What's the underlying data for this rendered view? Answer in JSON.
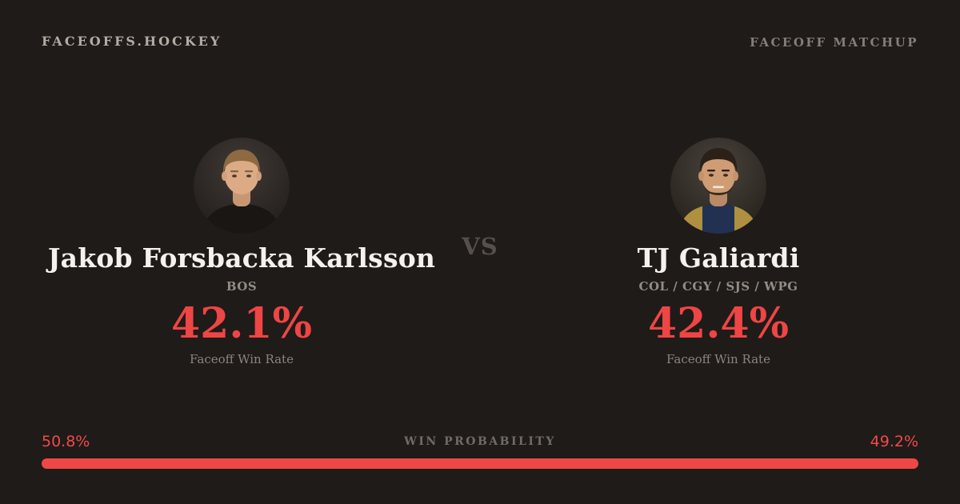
{
  "header": {
    "brand": "FACEOFFS.HOCKEY",
    "page_label": "FACEOFF MATCHUP"
  },
  "matchup": {
    "vs_label": "VS",
    "players": [
      {
        "name": "Jakob Forsbacka Karlsson",
        "teams": "BOS",
        "faceoff_win_rate": "42.1%",
        "stat_label": "Faceoff Win Rate",
        "win_probability_label": "50.8%"
      },
      {
        "name": "TJ Galiardi",
        "teams": "COL / CGY / SJS / WPG",
        "faceoff_win_rate": "42.4%",
        "stat_label": "Faceoff Win Rate",
        "win_probability_label": "49.2%"
      }
    ]
  },
  "win_probability": {
    "label": "WIN PROBABILITY",
    "left_label": "50.8%",
    "right_label": "49.2%",
    "left_value": 50.8,
    "right_value": 49.2
  },
  "colors": {
    "background": "#1f1b18",
    "accent_red": "#ee4545",
    "bar_red": "#ef4747",
    "name_white": "#f5f1ec",
    "muted_gray": "#8b847e",
    "vs_gray": "#55504b"
  }
}
